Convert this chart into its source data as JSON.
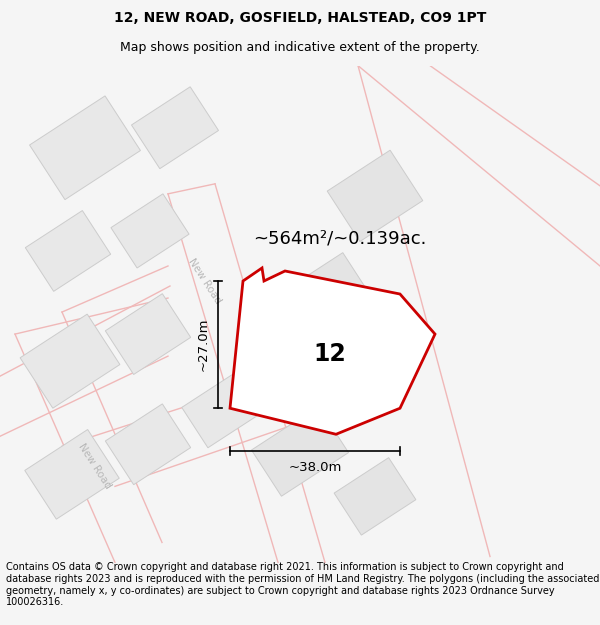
{
  "title": "12, NEW ROAD, GOSFIELD, HALSTEAD, CO9 1PT",
  "subtitle": "Map shows position and indicative extent of the property.",
  "footer": "Contains OS data © Crown copyright and database right 2021. This information is subject to Crown copyright and database rights 2023 and is reproduced with the permission of HM Land Registry. The polygons (including the associated geometry, namely x, y co-ordinates) are subject to Crown copyright and database rights 2023 Ordnance Survey 100026316.",
  "area_label": "~564m²/~0.139ac.",
  "width_label": "~38.0m",
  "height_label": "~27.0m",
  "property_number": "12",
  "bg_color": "#f5f5f5",
  "map_bg": "#ffffff",
  "building_color": "#e8e8e8",
  "building_edge": "#cccccc",
  "road_line_color": "#f0b8b8",
  "property_fill": "#ffffff",
  "property_edge": "#cc0000",
  "road_label_color": "#b8b8b8",
  "title_fontsize": 10,
  "subtitle_fontsize": 9,
  "footer_fontsize": 7,
  "area_fontsize": 13,
  "number_fontsize": 17,
  "dim_fontsize": 9.5
}
